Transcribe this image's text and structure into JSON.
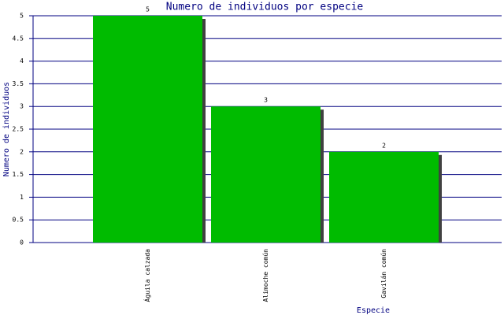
{
  "chart_data": {
    "type": "bar",
    "title": "Numero de individuos por especie",
    "x_label": "Especie",
    "y_label": "Numero de individuos",
    "categories": [
      "Águila calzada",
      "Alimoche común",
      "Gavilán común"
    ],
    "values": [
      5,
      3,
      2
    ],
    "color": "#00bb00",
    "ylim": [
      0,
      5
    ],
    "yticks": [
      0,
      0.5,
      1,
      1.5,
      2,
      2.5,
      3,
      3.5,
      4,
      4.5,
      5
    ],
    "grid": true
  }
}
